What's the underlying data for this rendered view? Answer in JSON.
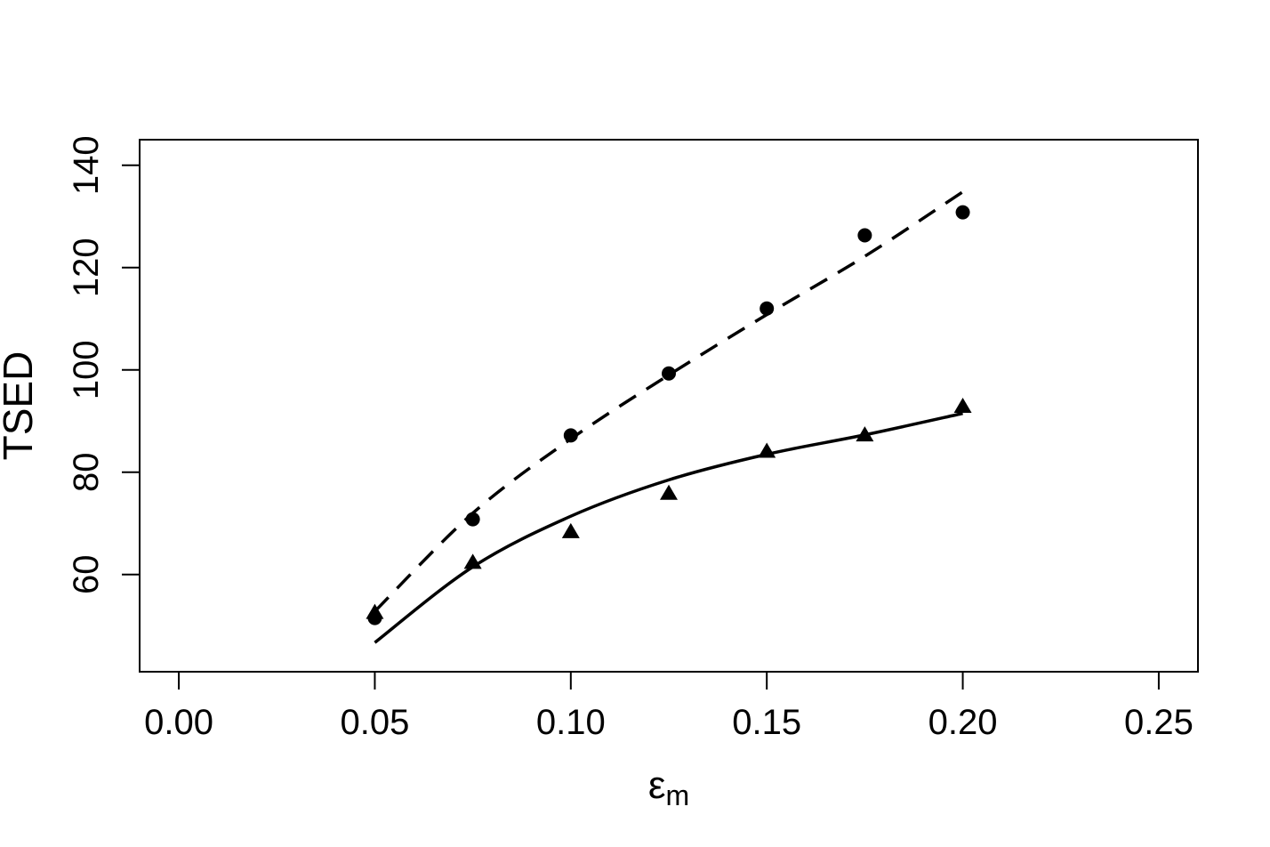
{
  "chart_data": {
    "type": "scatter",
    "title": "",
    "xlabel": {
      "symbol": "ε",
      "subscript": "m"
    },
    "ylabel": "TSED",
    "xlim": [
      -0.01,
      0.26
    ],
    "ylim": [
      41,
      145
    ],
    "xticks": [
      0.0,
      0.05,
      0.1,
      0.15,
      0.2,
      0.25
    ],
    "xtick_labels": [
      "0.00",
      "0.05",
      "0.10",
      "0.15",
      "0.20",
      "0.25"
    ],
    "yticks": [
      60,
      80,
      100,
      120,
      140
    ],
    "ytick_labels": [
      "60",
      "80",
      "100",
      "120",
      "140"
    ],
    "grid": false,
    "legend": "none",
    "series": [
      {
        "marker": "circle",
        "x": [
          0.05,
          0.075,
          0.1,
          0.125,
          0.15,
          0.175,
          0.2
        ],
        "y": [
          51.5,
          70.8,
          87.2,
          99.3,
          112.0,
          126.3,
          130.8
        ]
      },
      {
        "marker": "triangle",
        "x": [
          0.05,
          0.075,
          0.1,
          0.125,
          0.15,
          0.175,
          0.2
        ],
        "y": [
          52.5,
          62.3,
          68.3,
          75.8,
          84.0,
          87.2,
          92.8
        ]
      }
    ],
    "fits": [
      {
        "line_style": "dashed",
        "x": [
          0.05,
          0.075,
          0.1,
          0.125,
          0.15,
          0.175,
          0.2
        ],
        "y": [
          52.8,
          72.0,
          86.5,
          99.0,
          110.8,
          122.2,
          134.8
        ]
      },
      {
        "line_style": "solid",
        "x": [
          0.05,
          0.075,
          0.1,
          0.125,
          0.15,
          0.175,
          0.2
        ],
        "y": [
          46.7,
          61.5,
          71.4,
          78.5,
          83.5,
          87.3,
          91.5
        ]
      }
    ]
  }
}
